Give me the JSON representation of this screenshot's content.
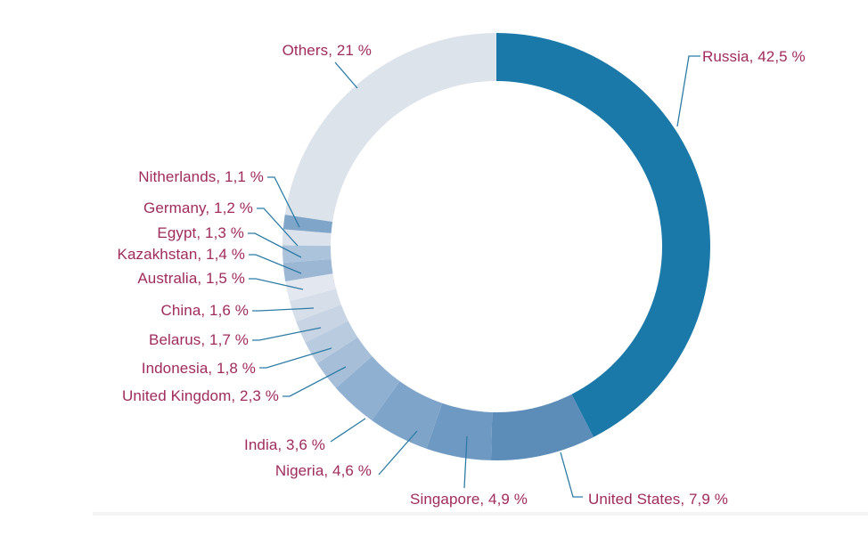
{
  "page": {
    "background": "#FFFFFF"
  },
  "chart_data": {
    "type": "pie",
    "subtype": "donut",
    "title": "",
    "unit": "%",
    "decimal_separator": ",",
    "legend_position": "none",
    "data_labels": "outside, with leader lines, format 'Name, value %'",
    "label_color": "#9F2B5D",
    "leader_line_color": "#2E7CA6",
    "background_color": "#FFFFFF",
    "slices": [
      {
        "name": "Russia",
        "value": 42.5,
        "label": "Russia, 42,5 %",
        "color": "#1A79A8"
      },
      {
        "name": "United States",
        "value": 7.9,
        "label": "United States, 7,9 %",
        "color": "#5C8DB9"
      },
      {
        "name": "Singapore",
        "value": 4.9,
        "label": "Singapore, 4,9 %",
        "color": "#6D99C2"
      },
      {
        "name": "Nigeria",
        "value": 4.6,
        "label": "Nigeria, 4,6 %",
        "color": "#7EA4C9"
      },
      {
        "name": "India",
        "value": 3.6,
        "label": "India, 3,6 %",
        "color": "#90B0D1"
      },
      {
        "name": "United Kingdom",
        "value": 2.3,
        "label": "United Kingdom, 2,3 %",
        "color": "#A7BED8"
      },
      {
        "name": "Indonesia",
        "value": 1.8,
        "label": "Indonesia, 1,8 %",
        "color": "#B8CBDF"
      },
      {
        "name": "Belarus",
        "value": 1.7,
        "label": "Belarus, 1,7 %",
        "color": "#C8D4E4"
      },
      {
        "name": "China",
        "value": 1.6,
        "label": "China, 1,6 %",
        "color": "#D6DEE9"
      },
      {
        "name": "Australia",
        "value": 1.5,
        "label": "Australia, 1,5 %",
        "color": "#E3E8F0"
      },
      {
        "name": "Kazakhstan",
        "value": 1.4,
        "label": "Kazakhstan, 1,4 %",
        "color": "#9BB7D4"
      },
      {
        "name": "Egypt",
        "value": 1.3,
        "label": "Egypt, 1,3 %",
        "color": "#ABC3DB"
      },
      {
        "name": "Germany",
        "value": 1.2,
        "label": "Germany, 1,2 %",
        "color": "#DBE2EC"
      },
      {
        "name": "Nitherlands",
        "value": 1.1,
        "label": "Nitherlands, 1,1 %",
        "color": "#7FA5C9"
      },
      {
        "name": "Others",
        "value": 21,
        "label": "Others, 21 %",
        "color": "#DCE3EB"
      }
    ]
  }
}
